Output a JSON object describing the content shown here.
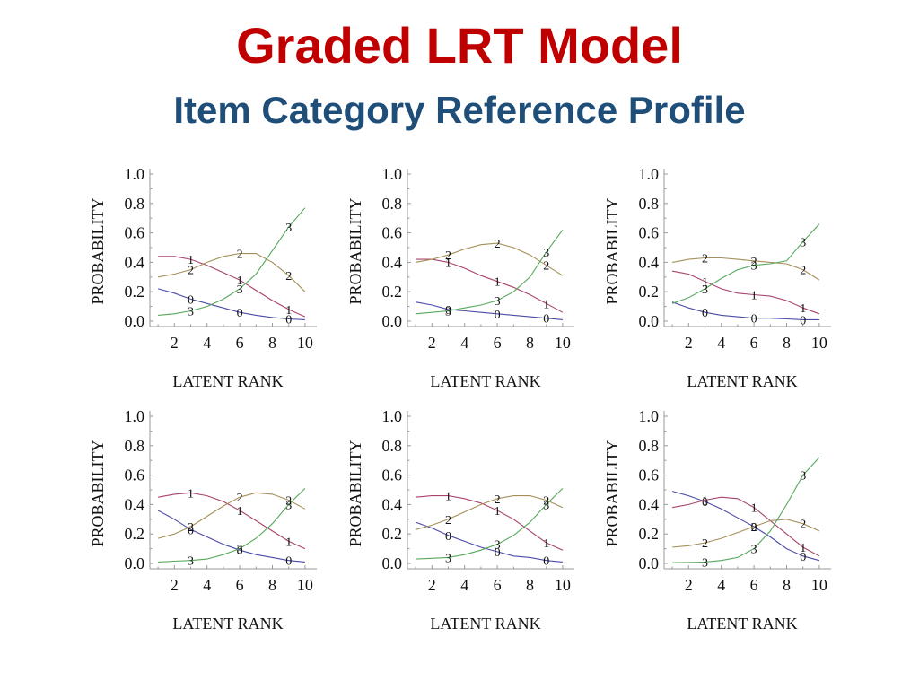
{
  "slide": {
    "title": "Graded LRT Model",
    "subtitle": "Item Category Reference Profile",
    "title_color": "#c00000",
    "subtitle_color": "#1f4e79"
  },
  "series_colors": {
    "0": "#4b4ba8",
    "1": "#a8436e",
    "2": "#a5905a",
    "3": "#55a85b"
  },
  "chart_data": [
    {
      "type": "line",
      "xlabel": "LATENT RANK",
      "ylabel": "PROBABILITY",
      "xlim": [
        0.5,
        10.5
      ],
      "ylim": [
        0,
        1.0
      ],
      "xticks": [
        2,
        4,
        6,
        8,
        10
      ],
      "yticks": [
        "0.0",
        "0.2",
        "0.4",
        "0.6",
        "0.8",
        "1.0"
      ],
      "x": [
        1,
        2,
        3,
        4,
        5,
        6,
        7,
        8,
        9,
        10
      ],
      "series": [
        {
          "name": "0",
          "values": [
            0.22,
            0.19,
            0.15,
            0.12,
            0.09,
            0.06,
            0.04,
            0.025,
            0.015,
            0.01
          ],
          "label_x": [
            3,
            6,
            9
          ]
        },
        {
          "name": "1",
          "values": [
            0.44,
            0.44,
            0.42,
            0.38,
            0.33,
            0.28,
            0.21,
            0.14,
            0.08,
            0.03
          ],
          "label_x": [
            3,
            6,
            9
          ]
        },
        {
          "name": "2",
          "values": [
            0.3,
            0.32,
            0.35,
            0.4,
            0.44,
            0.46,
            0.46,
            0.4,
            0.31,
            0.2
          ],
          "label_x": [
            3,
            6,
            9
          ]
        },
        {
          "name": "3",
          "values": [
            0.04,
            0.05,
            0.07,
            0.1,
            0.15,
            0.22,
            0.32,
            0.48,
            0.64,
            0.77
          ],
          "label_x": [
            3,
            6,
            9
          ]
        }
      ]
    },
    {
      "type": "line",
      "xlabel": "LATENT RANK",
      "ylabel": "PROBABILITY",
      "xlim": [
        0.5,
        10.5
      ],
      "ylim": [
        0,
        1.0
      ],
      "xticks": [
        2,
        4,
        6,
        8,
        10
      ],
      "yticks": [
        "0.0",
        "0.2",
        "0.4",
        "0.6",
        "0.8",
        "1.0"
      ],
      "x": [
        1,
        2,
        3,
        4,
        5,
        6,
        7,
        8,
        9,
        10
      ],
      "series": [
        {
          "name": "0",
          "values": [
            0.13,
            0.11,
            0.08,
            0.07,
            0.06,
            0.05,
            0.04,
            0.03,
            0.02,
            0.01
          ],
          "label_x": [
            3,
            6,
            9
          ]
        },
        {
          "name": "1",
          "values": [
            0.42,
            0.42,
            0.4,
            0.36,
            0.31,
            0.27,
            0.23,
            0.18,
            0.12,
            0.06
          ],
          "label_x": [
            3,
            6,
            9
          ]
        },
        {
          "name": "2",
          "values": [
            0.4,
            0.42,
            0.45,
            0.49,
            0.52,
            0.53,
            0.5,
            0.45,
            0.38,
            0.31
          ],
          "label_x": [
            3,
            6,
            9
          ]
        },
        {
          "name": "3",
          "values": [
            0.05,
            0.06,
            0.07,
            0.09,
            0.11,
            0.14,
            0.2,
            0.3,
            0.47,
            0.62
          ],
          "label_x": [
            3,
            6,
            9
          ]
        }
      ]
    },
    {
      "type": "line",
      "xlabel": "LATENT RANK",
      "ylabel": "PROBABILITY",
      "xlim": [
        0.5,
        10.5
      ],
      "ylim": [
        0,
        1.0
      ],
      "xticks": [
        2,
        4,
        6,
        8,
        10
      ],
      "yticks": [
        "0.0",
        "0.2",
        "0.4",
        "0.6",
        "0.8",
        "1.0"
      ],
      "x": [
        1,
        2,
        3,
        4,
        5,
        6,
        7,
        8,
        9,
        10
      ],
      "series": [
        {
          "name": "0",
          "values": [
            0.13,
            0.09,
            0.06,
            0.04,
            0.03,
            0.02,
            0.02,
            0.015,
            0.01,
            0.01
          ],
          "label_x": [
            3,
            6,
            9
          ]
        },
        {
          "name": "1",
          "values": [
            0.34,
            0.32,
            0.27,
            0.22,
            0.19,
            0.18,
            0.17,
            0.14,
            0.09,
            0.05
          ],
          "label_x": [
            3,
            6,
            9
          ]
        },
        {
          "name": "2",
          "values": [
            0.4,
            0.42,
            0.43,
            0.43,
            0.42,
            0.41,
            0.4,
            0.39,
            0.35,
            0.28
          ],
          "label_x": [
            3,
            6,
            9
          ]
        },
        {
          "name": "3",
          "values": [
            0.12,
            0.16,
            0.22,
            0.29,
            0.35,
            0.38,
            0.39,
            0.41,
            0.54,
            0.66
          ],
          "label_x": [
            3,
            6,
            9
          ]
        }
      ]
    },
    {
      "type": "line",
      "xlabel": "LATENT RANK",
      "ylabel": "PROBABILITY",
      "xlim": [
        0.5,
        10.5
      ],
      "ylim": [
        0,
        1.0
      ],
      "xticks": [
        2,
        4,
        6,
        8,
        10
      ],
      "yticks": [
        "0.0",
        "0.2",
        "0.4",
        "0.6",
        "0.8",
        "1.0"
      ],
      "x": [
        1,
        2,
        3,
        4,
        5,
        6,
        7,
        8,
        9,
        10
      ],
      "series": [
        {
          "name": "0",
          "values": [
            0.36,
            0.3,
            0.23,
            0.18,
            0.13,
            0.09,
            0.06,
            0.04,
            0.02,
            0.01
          ],
          "label_x": [
            3,
            6,
            9
          ]
        },
        {
          "name": "1",
          "values": [
            0.45,
            0.47,
            0.48,
            0.46,
            0.42,
            0.36,
            0.29,
            0.22,
            0.15,
            0.1
          ],
          "label_x": [
            3,
            6,
            9
          ]
        },
        {
          "name": "2",
          "values": [
            0.17,
            0.2,
            0.25,
            0.32,
            0.39,
            0.45,
            0.48,
            0.47,
            0.43,
            0.37
          ],
          "label_x": [
            3,
            6,
            9
          ]
        },
        {
          "name": "3",
          "values": [
            0.01,
            0.015,
            0.02,
            0.03,
            0.06,
            0.1,
            0.17,
            0.27,
            0.4,
            0.51
          ],
          "label_x": [
            3,
            6,
            9
          ]
        }
      ]
    },
    {
      "type": "line",
      "xlabel": "LATENT RANK",
      "ylabel": "PROBABILITY",
      "xlim": [
        0.5,
        10.5
      ],
      "ylim": [
        0,
        1.0
      ],
      "xticks": [
        2,
        4,
        6,
        8,
        10
      ],
      "yticks": [
        "0.0",
        "0.2",
        "0.4",
        "0.6",
        "0.8",
        "1.0"
      ],
      "x": [
        1,
        2,
        3,
        4,
        5,
        6,
        7,
        8,
        9,
        10
      ],
      "series": [
        {
          "name": "0",
          "values": [
            0.28,
            0.24,
            0.19,
            0.15,
            0.11,
            0.08,
            0.05,
            0.04,
            0.02,
            0.01
          ],
          "label_x": [
            3,
            6,
            9
          ]
        },
        {
          "name": "1",
          "values": [
            0.45,
            0.46,
            0.46,
            0.44,
            0.41,
            0.36,
            0.3,
            0.22,
            0.14,
            0.09
          ],
          "label_x": [
            3,
            6,
            9
          ]
        },
        {
          "name": "2",
          "values": [
            0.23,
            0.26,
            0.3,
            0.35,
            0.4,
            0.44,
            0.46,
            0.46,
            0.43,
            0.38
          ],
          "label_x": [
            3,
            6,
            9
          ]
        },
        {
          "name": "3",
          "values": [
            0.03,
            0.035,
            0.04,
            0.06,
            0.09,
            0.13,
            0.19,
            0.28,
            0.4,
            0.51
          ],
          "label_x": [
            3,
            6,
            9
          ]
        }
      ]
    },
    {
      "type": "line",
      "xlabel": "LATENT RANK",
      "ylabel": "PROBABILITY",
      "xlim": [
        0.5,
        10.5
      ],
      "ylim": [
        0,
        1.0
      ],
      "xticks": [
        2,
        4,
        6,
        8,
        10
      ],
      "yticks": [
        "0.0",
        "0.2",
        "0.4",
        "0.6",
        "0.8",
        "1.0"
      ],
      "x": [
        1,
        2,
        3,
        4,
        5,
        6,
        7,
        8,
        9,
        10
      ],
      "series": [
        {
          "name": "0",
          "values": [
            0.49,
            0.46,
            0.42,
            0.37,
            0.31,
            0.25,
            0.18,
            0.1,
            0.05,
            0.02
          ],
          "label_x": [
            3,
            6,
            9
          ]
        },
        {
          "name": "1",
          "values": [
            0.38,
            0.4,
            0.43,
            0.45,
            0.44,
            0.38,
            0.29,
            0.2,
            0.11,
            0.05
          ],
          "label_x": [
            3,
            6,
            9
          ]
        },
        {
          "name": "2",
          "values": [
            0.11,
            0.12,
            0.14,
            0.17,
            0.21,
            0.25,
            0.29,
            0.3,
            0.27,
            0.22
          ],
          "label_x": [
            3,
            6,
            9
          ]
        },
        {
          "name": "3",
          "values": [
            0.005,
            0.007,
            0.01,
            0.02,
            0.04,
            0.1,
            0.22,
            0.4,
            0.6,
            0.72
          ],
          "label_x": [
            3,
            6,
            9
          ]
        }
      ]
    }
  ]
}
